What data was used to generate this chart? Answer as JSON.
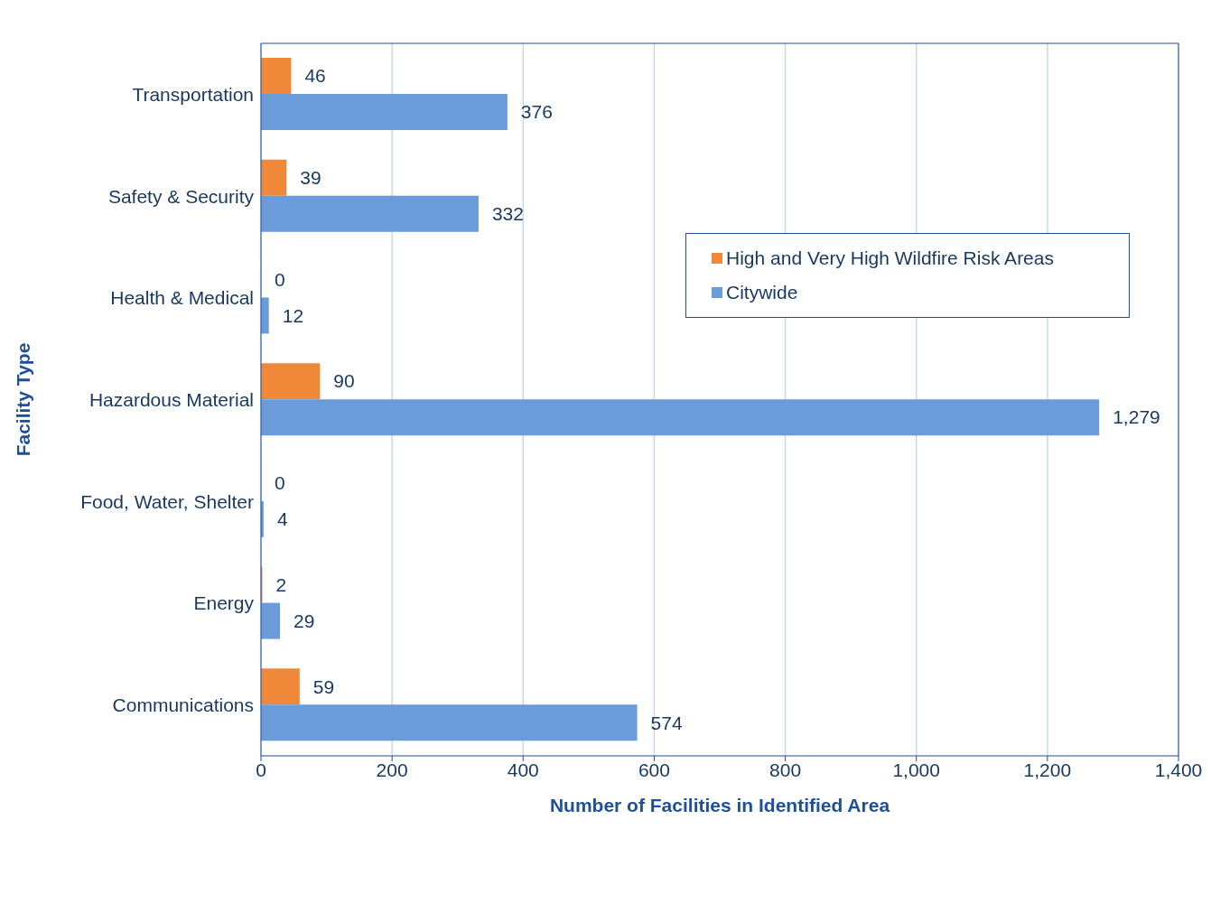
{
  "chart_data": {
    "type": "bar",
    "orientation": "horizontal",
    "xlabel": "Number of Facilities in Identified Area",
    "ylabel": "Facility Type",
    "categories": [
      "Transportation",
      "Safety & Security",
      "Health & Medical",
      "Hazardous Material",
      "Food, Water, Shelter",
      "Energy",
      "Communications"
    ],
    "series": [
      {
        "name": "High and Very High Wildfire Risk Areas",
        "color": "#f0883a",
        "values": [
          46,
          39,
          0,
          90,
          0,
          2,
          59
        ],
        "value_labels": [
          "46",
          "39",
          "0",
          "90",
          "0",
          "2",
          "59"
        ]
      },
      {
        "name": "Citywide",
        "color": "#6b9bd8",
        "values": [
          376,
          332,
          12,
          1279,
          4,
          29,
          574
        ],
        "value_labels": [
          "376",
          "332",
          "12",
          "1,279",
          "4",
          "29",
          "574"
        ]
      }
    ],
    "xlim": [
      0,
      1400
    ],
    "xticks": [
      0,
      200,
      400,
      600,
      800,
      {
        "value": 1000,
        "label": "1,000"
      },
      {
        "value": 1200,
        "label": "1,200"
      },
      {
        "value": 1400,
        "label": "1,400"
      }
    ],
    "grid": "x",
    "legend": "top right"
  }
}
